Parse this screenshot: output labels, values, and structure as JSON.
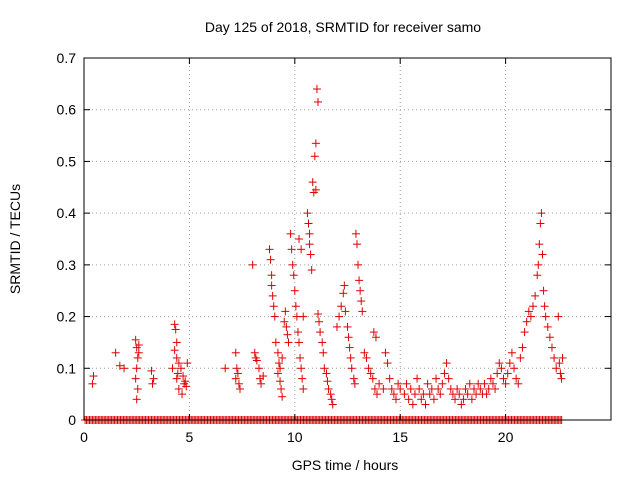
{
  "chart_data": {
    "type": "scatter",
    "title": "Day 125 of 2018, SRMTID for receiver samo",
    "xlabel": "GPS time / hours",
    "ylabel": "SRMTID / TECUs",
    "xlim": [
      0,
      25
    ],
    "ylim": [
      0,
      0.7
    ],
    "xticks": [
      0,
      5,
      10,
      15,
      20
    ],
    "xtick_labels": [
      "0",
      "5",
      "10",
      "15",
      "20"
    ],
    "yticks": [
      0,
      0.1,
      0.2,
      0.3,
      0.4,
      0.5,
      0.6,
      0.7
    ],
    "ytick_labels": [
      "0",
      "0.1",
      "0.2",
      "0.3",
      "0.4",
      "0.5",
      "0.6",
      "0.7"
    ],
    "grid": true,
    "marker": "+",
    "color": "#e00000",
    "zero_baseline": {
      "x_start": 0.05,
      "x_end": 22.7,
      "x_step": 0.07,
      "y": 0
    },
    "series": [
      {
        "name": "SRMTID",
        "points": [
          [
            0.4,
            0.07
          ],
          [
            0.45,
            0.085
          ],
          [
            1.5,
            0.13
          ],
          [
            1.7,
            0.105
          ],
          [
            1.9,
            0.1
          ],
          [
            2.45,
            0.155
          ],
          [
            2.5,
            0.14
          ],
          [
            2.55,
            0.12
          ],
          [
            2.6,
            0.13
          ],
          [
            2.5,
            0.1
          ],
          [
            2.45,
            0.08
          ],
          [
            2.55,
            0.06
          ],
          [
            2.5,
            0.04
          ],
          [
            2.6,
            0.145
          ],
          [
            3.2,
            0.095
          ],
          [
            3.3,
            0.08
          ],
          [
            3.25,
            0.07
          ],
          [
            4.2,
            0.1
          ],
          [
            4.3,
            0.185
          ],
          [
            4.35,
            0.175
          ],
          [
            4.4,
            0.15
          ],
          [
            4.3,
            0.135
          ],
          [
            4.4,
            0.12
          ],
          [
            4.5,
            0.11
          ],
          [
            4.45,
            0.09
          ],
          [
            4.6,
            0.1
          ],
          [
            4.7,
            0.085
          ],
          [
            4.8,
            0.075
          ],
          [
            4.85,
            0.065
          ],
          [
            4.5,
            0.06
          ],
          [
            4.65,
            0.05
          ],
          [
            4.75,
            0.07
          ],
          [
            4.4,
            0.08
          ],
          [
            4.9,
            0.11
          ],
          [
            6.7,
            0.1
          ],
          [
            7.2,
            0.13
          ],
          [
            7.25,
            0.1
          ],
          [
            7.3,
            0.09
          ],
          [
            7.35,
            0.07
          ],
          [
            7.4,
            0.06
          ],
          [
            7.2,
            0.08
          ],
          [
            8.0,
            0.3
          ],
          [
            8.1,
            0.13
          ],
          [
            8.15,
            0.12
          ],
          [
            8.2,
            0.115
          ],
          [
            8.3,
            0.1
          ],
          [
            8.35,
            0.08
          ],
          [
            8.4,
            0.07
          ],
          [
            8.5,
            0.085
          ],
          [
            8.8,
            0.33
          ],
          [
            8.85,
            0.31
          ],
          [
            8.9,
            0.28
          ],
          [
            8.9,
            0.26
          ],
          [
            8.95,
            0.24
          ],
          [
            9.0,
            0.22
          ],
          [
            9.05,
            0.2
          ],
          [
            9.1,
            0.15
          ],
          [
            9.2,
            0.13
          ],
          [
            9.25,
            0.11
          ],
          [
            9.3,
            0.1
          ],
          [
            9.4,
            0.12
          ],
          [
            9.5,
            0.19
          ],
          [
            9.55,
            0.21
          ],
          [
            9.6,
            0.18
          ],
          [
            9.65,
            0.165
          ],
          [
            9.7,
            0.15
          ],
          [
            9.2,
            0.09
          ],
          [
            9.3,
            0.075
          ],
          [
            9.35,
            0.06
          ],
          [
            9.4,
            0.045
          ],
          [
            9.8,
            0.36
          ],
          [
            9.85,
            0.33
          ],
          [
            9.9,
            0.3
          ],
          [
            9.95,
            0.28
          ],
          [
            10.0,
            0.25
          ],
          [
            10.05,
            0.22
          ],
          [
            10.1,
            0.2
          ],
          [
            10.15,
            0.17
          ],
          [
            10.2,
            0.15
          ],
          [
            10.25,
            0.12
          ],
          [
            10.3,
            0.1
          ],
          [
            10.35,
            0.08
          ],
          [
            10.4,
            0.06
          ],
          [
            10.2,
            0.35
          ],
          [
            10.3,
            0.33
          ],
          [
            10.4,
            0.2
          ],
          [
            10.6,
            0.4
          ],
          [
            10.65,
            0.38
          ],
          [
            10.7,
            0.36
          ],
          [
            10.7,
            0.34
          ],
          [
            10.75,
            0.32
          ],
          [
            10.8,
            0.29
          ],
          [
            10.85,
            0.46
          ],
          [
            10.9,
            0.44
          ],
          [
            10.95,
            0.51
          ],
          [
            11.05,
            0.64
          ],
          [
            11.1,
            0.615
          ],
          [
            11.0,
            0.535
          ],
          [
            11.0,
            0.445
          ],
          [
            11.1,
            0.205
          ],
          [
            11.15,
            0.19
          ],
          [
            11.2,
            0.17
          ],
          [
            11.3,
            0.15
          ],
          [
            11.35,
            0.13
          ],
          [
            11.4,
            0.1
          ],
          [
            11.5,
            0.09
          ],
          [
            11.55,
            0.075
          ],
          [
            11.6,
            0.06
          ],
          [
            11.7,
            0.05
          ],
          [
            11.75,
            0.04
          ],
          [
            11.8,
            0.03
          ],
          [
            12.0,
            0.18
          ],
          [
            12.1,
            0.2
          ],
          [
            12.2,
            0.22
          ],
          [
            12.3,
            0.245
          ],
          [
            12.35,
            0.26
          ],
          [
            12.4,
            0.21
          ],
          [
            12.5,
            0.18
          ],
          [
            12.55,
            0.16
          ],
          [
            12.6,
            0.14
          ],
          [
            12.65,
            0.12
          ],
          [
            12.7,
            0.1
          ],
          [
            12.8,
            0.08
          ],
          [
            12.85,
            0.07
          ],
          [
            12.9,
            0.36
          ],
          [
            12.95,
            0.34
          ],
          [
            13.0,
            0.3
          ],
          [
            13.05,
            0.27
          ],
          [
            13.1,
            0.25
          ],
          [
            13.15,
            0.23
          ],
          [
            13.2,
            0.21
          ],
          [
            13.3,
            0.13
          ],
          [
            13.4,
            0.12
          ],
          [
            13.5,
            0.1
          ],
          [
            13.6,
            0.09
          ],
          [
            13.7,
            0.08
          ],
          [
            13.8,
            0.06
          ],
          [
            13.9,
            0.05
          ],
          [
            13.75,
            0.17
          ],
          [
            13.85,
            0.16
          ],
          [
            14.0,
            0.07
          ],
          [
            14.2,
            0.06
          ],
          [
            14.3,
            0.13
          ],
          [
            14.4,
            0.11
          ],
          [
            14.5,
            0.08
          ],
          [
            14.6,
            0.06
          ],
          [
            14.7,
            0.05
          ],
          [
            14.8,
            0.04
          ],
          [
            14.9,
            0.07
          ],
          [
            15.0,
            0.06
          ],
          [
            15.2,
            0.05
          ],
          [
            15.3,
            0.07
          ],
          [
            15.4,
            0.04
          ],
          [
            15.5,
            0.06
          ],
          [
            15.6,
            0.03
          ],
          [
            15.7,
            0.05
          ],
          [
            15.8,
            0.08
          ],
          [
            15.9,
            0.06
          ],
          [
            16.0,
            0.04
          ],
          [
            16.1,
            0.05
          ],
          [
            16.2,
            0.03
          ],
          [
            16.3,
            0.07
          ],
          [
            16.4,
            0.05
          ],
          [
            16.5,
            0.06
          ],
          [
            16.6,
            0.04
          ],
          [
            16.7,
            0.08
          ],
          [
            16.8,
            0.06
          ],
          [
            16.9,
            0.05
          ],
          [
            17.0,
            0.07
          ],
          [
            17.1,
            0.09
          ],
          [
            17.2,
            0.11
          ],
          [
            17.3,
            0.08
          ],
          [
            17.4,
            0.06
          ],
          [
            17.5,
            0.05
          ],
          [
            17.6,
            0.04
          ],
          [
            17.7,
            0.06
          ],
          [
            17.8,
            0.05
          ],
          [
            17.9,
            0.03
          ],
          [
            18.0,
            0.04
          ],
          [
            18.1,
            0.06
          ],
          [
            18.2,
            0.05
          ],
          [
            18.3,
            0.07
          ],
          [
            18.4,
            0.04
          ],
          [
            18.5,
            0.06
          ],
          [
            18.6,
            0.05
          ],
          [
            18.7,
            0.07
          ],
          [
            18.8,
            0.06
          ],
          [
            18.9,
            0.05
          ],
          [
            19.0,
            0.07
          ],
          [
            19.1,
            0.05
          ],
          [
            19.2,
            0.06
          ],
          [
            19.3,
            0.08
          ],
          [
            19.4,
            0.07
          ],
          [
            19.5,
            0.06
          ],
          [
            19.6,
            0.09
          ],
          [
            19.7,
            0.11
          ],
          [
            19.8,
            0.1
          ],
          [
            19.9,
            0.08
          ],
          [
            20.0,
            0.07
          ],
          [
            20.1,
            0.09
          ],
          [
            20.2,
            0.11
          ],
          [
            20.3,
            0.13
          ],
          [
            20.4,
            0.1
          ],
          [
            20.5,
            0.08
          ],
          [
            20.6,
            0.07
          ],
          [
            20.7,
            0.12
          ],
          [
            20.8,
            0.14
          ],
          [
            20.9,
            0.17
          ],
          [
            21.0,
            0.19
          ],
          [
            21.1,
            0.21
          ],
          [
            21.2,
            0.2
          ],
          [
            21.3,
            0.22
          ],
          [
            21.4,
            0.24
          ],
          [
            21.5,
            0.28
          ],
          [
            21.55,
            0.3
          ],
          [
            21.6,
            0.34
          ],
          [
            21.65,
            0.38
          ],
          [
            21.7,
            0.4
          ],
          [
            21.75,
            0.32
          ],
          [
            21.8,
            0.25
          ],
          [
            21.85,
            0.22
          ],
          [
            21.9,
            0.2
          ],
          [
            22.0,
            0.18
          ],
          [
            22.1,
            0.16
          ],
          [
            22.2,
            0.14
          ],
          [
            22.3,
            0.12
          ],
          [
            22.4,
            0.1
          ],
          [
            22.5,
            0.2
          ],
          [
            22.55,
            0.11
          ],
          [
            22.6,
            0.09
          ],
          [
            22.65,
            0.08
          ],
          [
            22.7,
            0.12
          ]
        ]
      }
    ]
  }
}
